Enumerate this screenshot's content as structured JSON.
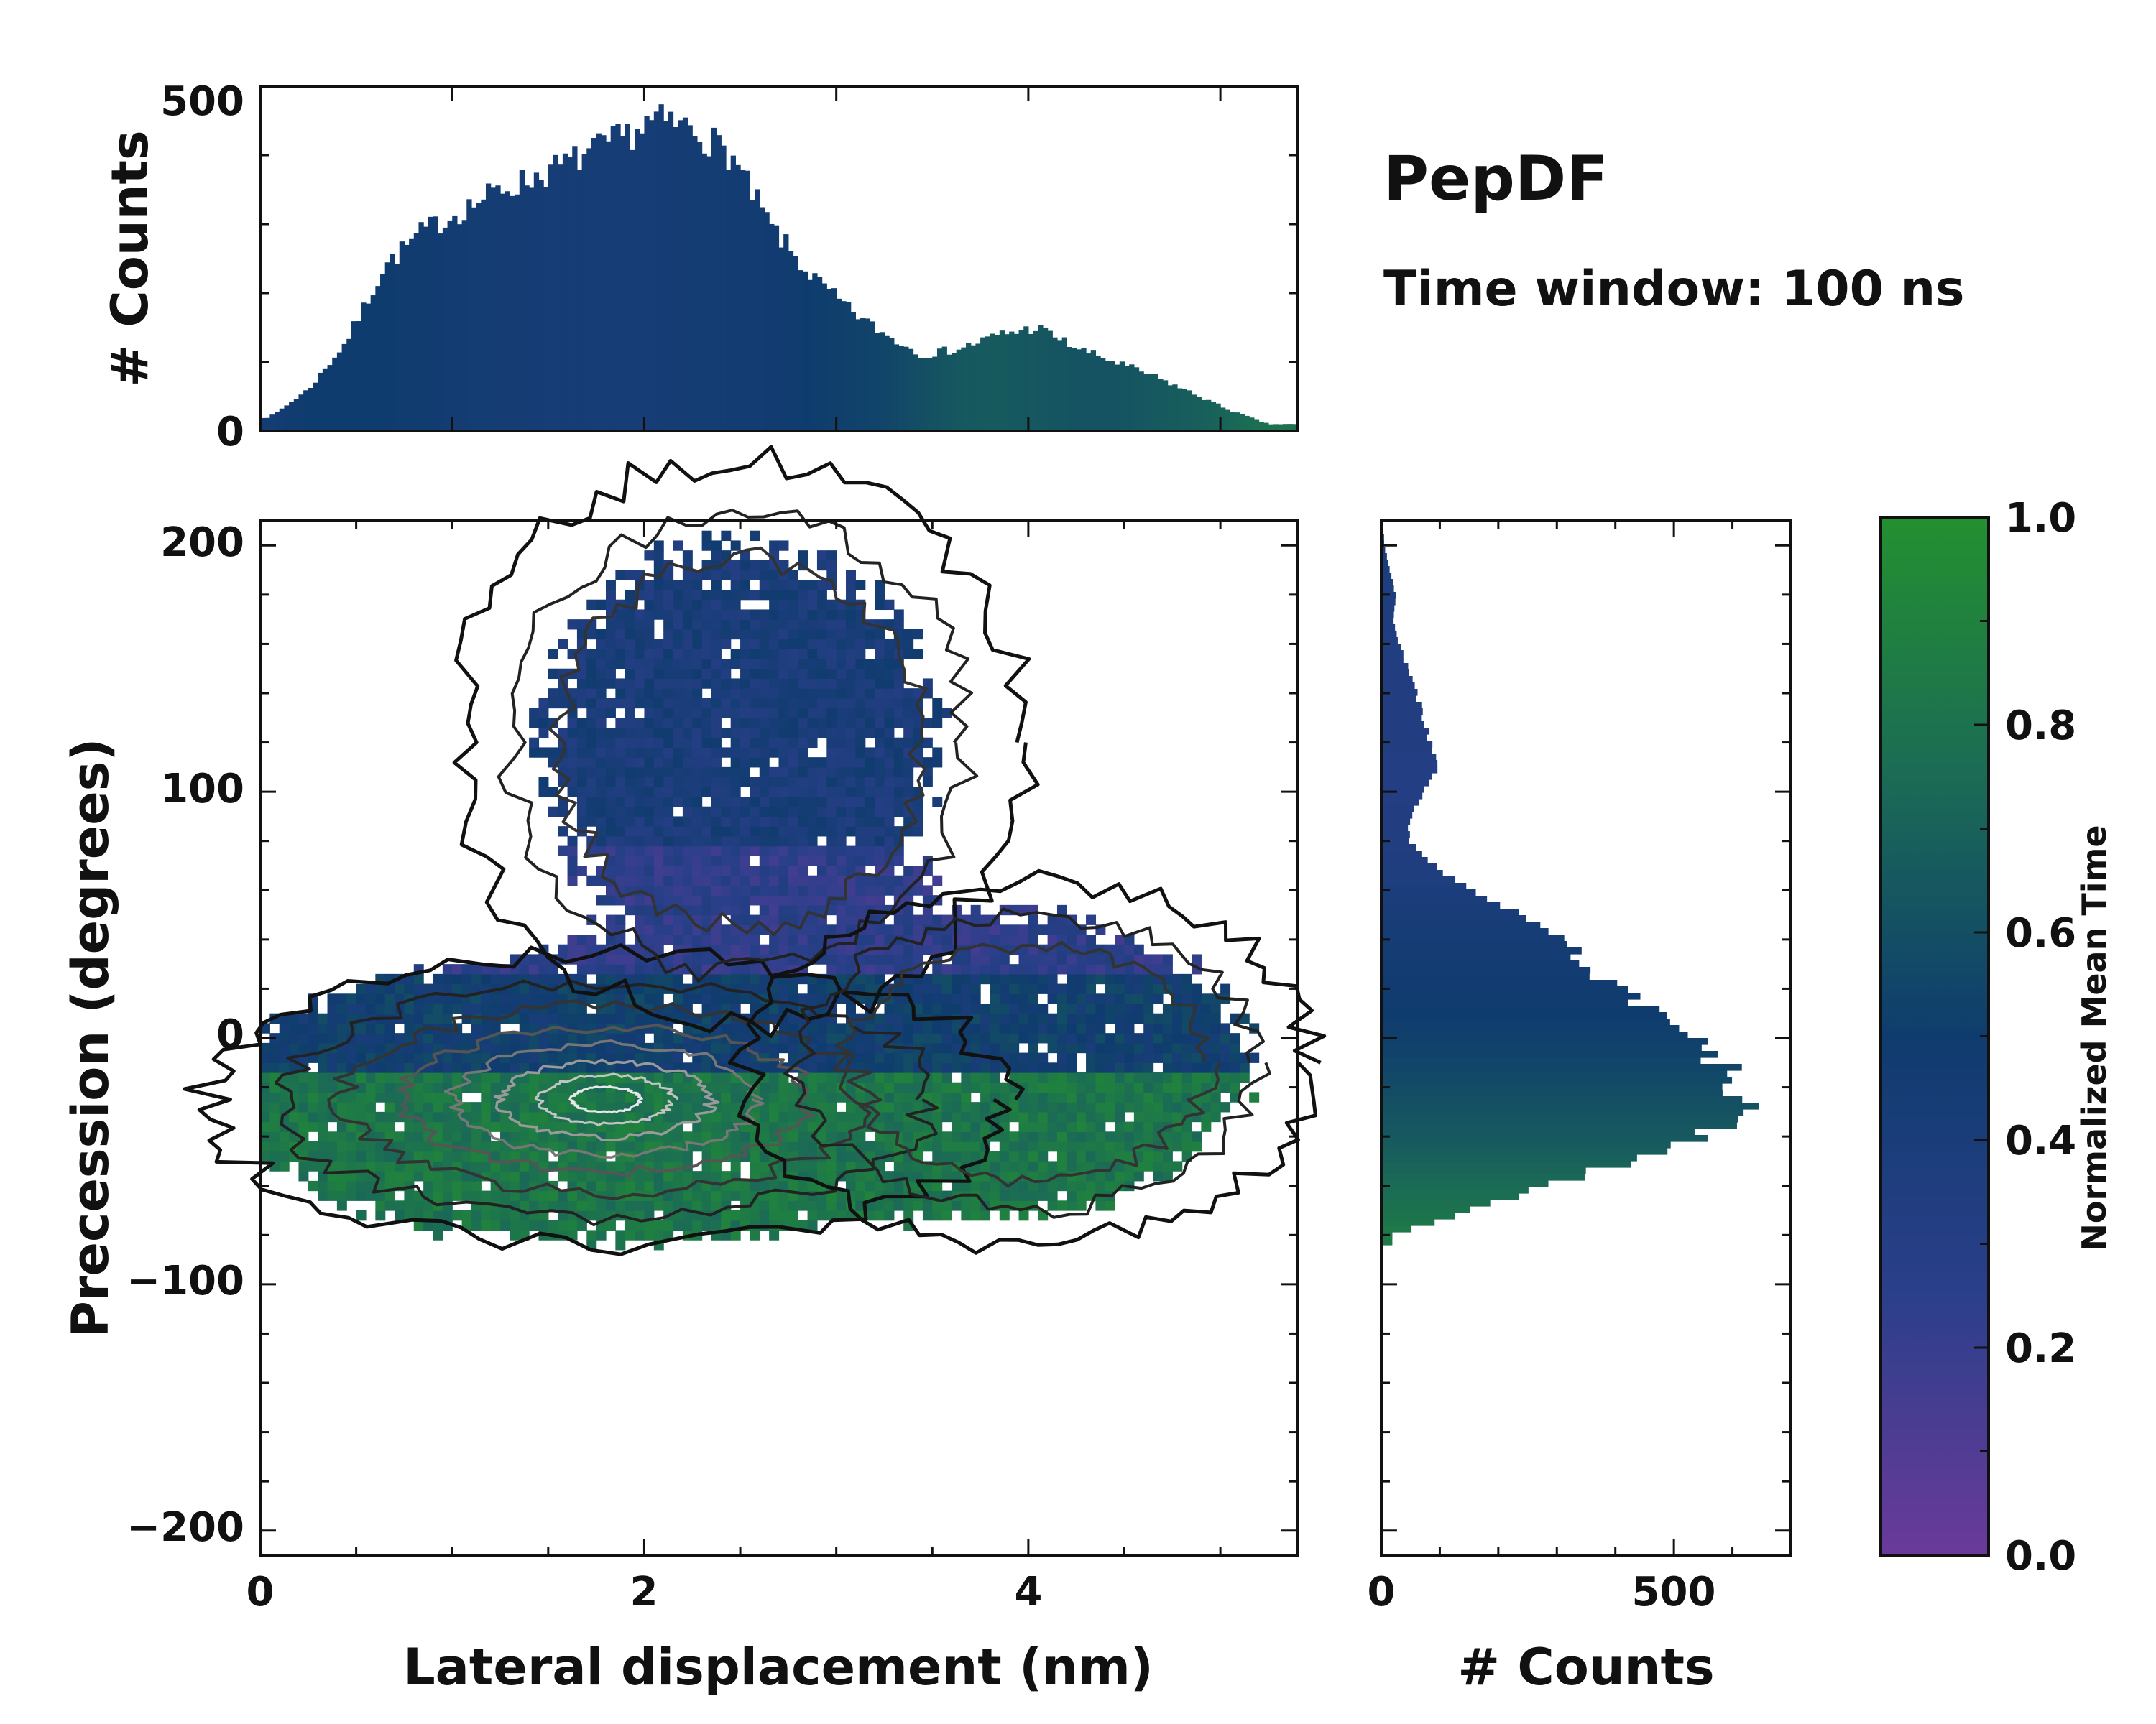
{
  "chart_data": [
    {
      "type": "bar",
      "panel": "top-marginal-histogram",
      "ylabel": "# Counts",
      "xlim": [
        0,
        5.4
      ],
      "ylim": [
        0,
        500
      ],
      "yticks": [
        0,
        500
      ],
      "x": [
        0.05,
        0.25,
        0.45,
        0.65,
        0.85,
        1.05,
        1.25,
        1.45,
        1.65,
        1.85,
        2.05,
        2.25,
        2.45,
        2.65,
        2.85,
        3.05,
        3.25,
        3.45,
        3.65,
        3.85,
        4.05,
        4.25,
        4.45,
        4.65,
        4.85,
        5.05,
        5.25
      ],
      "values": [
        20,
        60,
        130,
        240,
        290,
        320,
        350,
        370,
        395,
        420,
        450,
        440,
        400,
        300,
        230,
        180,
        140,
        110,
        120,
        140,
        150,
        120,
        100,
        80,
        55,
        30,
        10
      ],
      "color_values": [
        0.45,
        0.5,
        0.5,
        0.5,
        0.48,
        0.46,
        0.45,
        0.44,
        0.43,
        0.43,
        0.44,
        0.45,
        0.46,
        0.47,
        0.5,
        0.52,
        0.55,
        0.6,
        0.65,
        0.66,
        0.64,
        0.62,
        0.62,
        0.65,
        0.68,
        0.72,
        0.8
      ]
    },
    {
      "type": "heatmap",
      "panel": "main-2d-histogram",
      "xlabel": "Lateral displacement (nm)",
      "ylabel": "Precession (degrees)",
      "xlim": [
        0,
        5.4
      ],
      "ylim": [
        -210,
        210
      ],
      "xticks": [
        0,
        2,
        4
      ],
      "yticks": [
        -200,
        -100,
        0,
        100,
        200
      ],
      "clusters": [
        {
          "x": 1.8,
          "y": -25,
          "sx": 1.0,
          "sy": 28,
          "w": 1.0
        },
        {
          "x": 2.5,
          "y": 120,
          "sx": 0.7,
          "sy": 55,
          "w": 0.35
        },
        {
          "x": 4.0,
          "y": -10,
          "sx": 0.7,
          "sy": 35,
          "w": 0.45
        }
      ],
      "color_field": [
        {
          "below_y": -15,
          "value": 0.82
        },
        {
          "below_y": 25,
          "value": 0.5
        },
        {
          "below_y": 80,
          "value": 0.25
        },
        {
          "below_y": 210,
          "value": 0.4
        }
      ]
    },
    {
      "type": "bar",
      "orientation": "horizontal",
      "panel": "right-marginal-histogram",
      "xlabel": "# Counts",
      "xlim": [
        0,
        700
      ],
      "xticks": [
        0,
        500
      ],
      "ylim": [
        -210,
        210
      ],
      "y": [
        200,
        190,
        180,
        170,
        160,
        150,
        140,
        130,
        120,
        110,
        100,
        90,
        80,
        70,
        60,
        50,
        40,
        30,
        20,
        10,
        0,
        -10,
        -20,
        -30,
        -40,
        -50,
        -60,
        -70,
        -80
      ],
      "values": [
        5,
        15,
        25,
        20,
        30,
        45,
        60,
        70,
        85,
        100,
        70,
        50,
        45,
        90,
        150,
        250,
        310,
        340,
        400,
        470,
        530,
        580,
        600,
        620,
        550,
        420,
        280,
        150,
        20
      ],
      "color_values": [
        0.4,
        0.38,
        0.36,
        0.35,
        0.34,
        0.33,
        0.33,
        0.33,
        0.33,
        0.32,
        0.32,
        0.33,
        0.34,
        0.35,
        0.38,
        0.42,
        0.44,
        0.46,
        0.48,
        0.5,
        0.52,
        0.55,
        0.58,
        0.62,
        0.65,
        0.7,
        0.75,
        0.8,
        0.85
      ]
    }
  ],
  "title": "PepDF",
  "subtitle": "Time window: 100 ns",
  "colorbar": {
    "label": "Normalized Mean Time",
    "range": [
      0,
      1
    ],
    "ticks": [
      "0.0",
      "0.2",
      "0.4",
      "0.6",
      "0.8",
      "1.0"
    ],
    "stops": [
      "#6a3a9a",
      "#2b3f8a",
      "#0f3c6e",
      "#1b6b55",
      "#239030"
    ]
  },
  "labels": {
    "top_ylabel": "# Counts",
    "main_xlabel": "Lateral displacement (nm)",
    "main_ylabel": "Precession (degrees)",
    "right_xlabel": "# Counts",
    "top_yticks": [
      "0",
      "500"
    ],
    "main_xticks": [
      "0",
      "2",
      "4"
    ],
    "main_yticks": [
      "200",
      "100",
      "0",
      "−100",
      "−200"
    ],
    "right_xticks": [
      "0",
      "500"
    ]
  }
}
